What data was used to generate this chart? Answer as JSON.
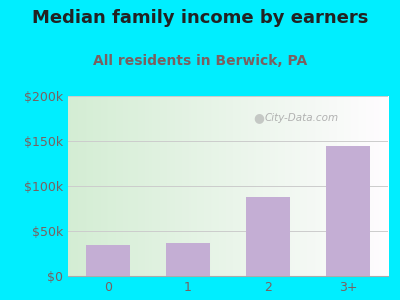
{
  "title": "Median family income by earners",
  "subtitle": "All residents in Berwick, PA",
  "categories": [
    "0",
    "1",
    "2",
    "3+"
  ],
  "values": [
    35000,
    37000,
    88000,
    145000
  ],
  "bar_color": "#c4aed4",
  "background_outer": "#00eeff",
  "plot_bg_topleft": "#d4ecd4",
  "plot_bg_right": "#f0f0f8",
  "plot_bg_bottom": "#e8f0e8",
  "title_color": "#222222",
  "subtitle_color": "#7a6060",
  "tick_color": "#7a6060",
  "grid_color": "#cccccc",
  "ylim": [
    0,
    200000
  ],
  "yticks": [
    0,
    50000,
    100000,
    150000,
    200000
  ],
  "ytick_labels": [
    "$0",
    "$50k",
    "$100k",
    "$150k",
    "$200k"
  ],
  "watermark": "City-Data.com",
  "title_fontsize": 13,
  "subtitle_fontsize": 10,
  "tick_fontsize": 9
}
